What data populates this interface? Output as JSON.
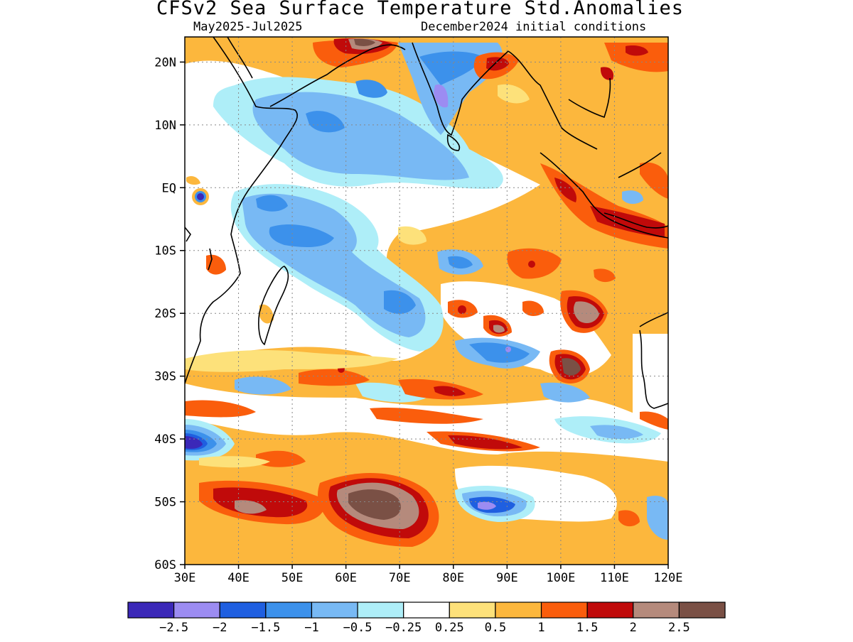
{
  "title": "CFSv2 Sea Surface Temperature Std.Anomalies",
  "subtitle_left": "May2025-Jul2025",
  "subtitle_right": "December2024 initial conditions",
  "map": {
    "lon_range": [
      30,
      120
    ],
    "lat_range": [
      -60,
      24
    ],
    "lat_ticks": [
      {
        "value": 20,
        "label": "20N"
      },
      {
        "value": 10,
        "label": "10N"
      },
      {
        "value": 0,
        "label": "EQ"
      },
      {
        "value": -10,
        "label": "10S"
      },
      {
        "value": -20,
        "label": "20S"
      },
      {
        "value": -30,
        "label": "30S"
      },
      {
        "value": -40,
        "label": "40S"
      },
      {
        "value": -50,
        "label": "50S"
      },
      {
        "value": -60,
        "label": "60S"
      }
    ],
    "lon_ticks": [
      {
        "value": 30,
        "label": "30E"
      },
      {
        "value": 40,
        "label": "40E"
      },
      {
        "value": 50,
        "label": "50E"
      },
      {
        "value": 60,
        "label": "60E"
      },
      {
        "value": 70,
        "label": "70E"
      },
      {
        "value": 80,
        "label": "80E"
      },
      {
        "value": 90,
        "label": "90E"
      },
      {
        "value": 100,
        "label": "100E"
      },
      {
        "value": 110,
        "label": "110E"
      },
      {
        "value": 120,
        "label": "120E"
      }
    ],
    "grid": "dotted"
  },
  "legend": {
    "colors": [
      "#3b28b8",
      "#9c8cf2",
      "#1f5fe0",
      "#3c91eb",
      "#78b9f4",
      "#aeeef8",
      "#ffffff",
      "#fde17a",
      "#fcb73d",
      "#fa5d0c",
      "#c00a0a",
      "#b58a7c",
      "#7a5045"
    ],
    "labels": [
      "-2.5",
      "-2",
      "-1.5",
      "-1",
      "-0.5",
      "-0.25",
      "0.25",
      "0.5",
      "1",
      "1.5",
      "2",
      "2.5"
    ]
  },
  "palette": {
    "neg3": "#3b28b8",
    "neg25": "#9c8cf2",
    "neg2": "#1f5fe0",
    "neg15": "#3c91eb",
    "neg1": "#78b9f4",
    "neg05": "#aeeef8",
    "zero": "#ffffff",
    "pos05": "#fde17a",
    "pos1": "#fcb73d",
    "pos15": "#fa5d0c",
    "pos2": "#c00a0a",
    "pos25": "#b58a7c",
    "pos3": "#7a5045"
  }
}
